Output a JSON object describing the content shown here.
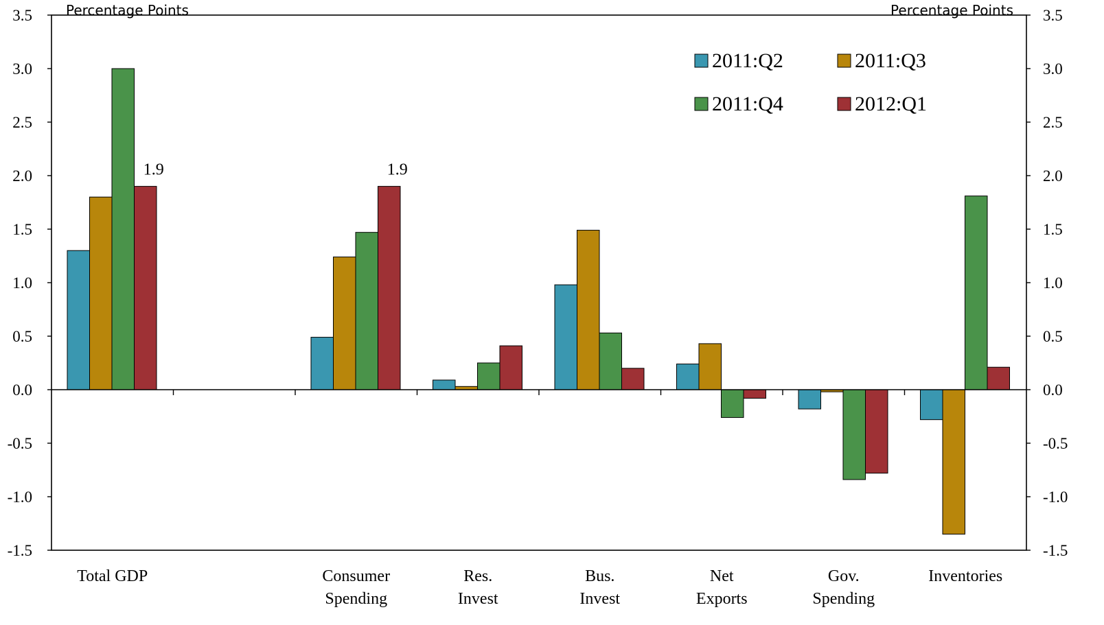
{
  "chart_data": {
    "type": "bar",
    "title": "",
    "y_unit_left": "Percentage Points",
    "y_unit_right": "Percentage Points",
    "ylim": [
      -1.5,
      3.5
    ],
    "yticks": [
      "-1.5",
      "-1.0",
      "-0.5",
      "0.0",
      "0.5",
      "1.0",
      "1.5",
      "2.0",
      "2.5",
      "3.0",
      "3.5"
    ],
    "ytick_values": [
      -1.5,
      -1.0,
      -0.5,
      0.0,
      0.5,
      1.0,
      1.5,
      2.0,
      2.5,
      3.0,
      3.5
    ],
    "grid": false,
    "legend_position": "top-right",
    "categories": [
      [
        "Total GDP"
      ],
      [
        ""
      ],
      [
        "Consumer",
        "Spending"
      ],
      [
        "Res.",
        "Invest"
      ],
      [
        "Bus.",
        "Invest"
      ],
      [
        "Net",
        "Exports"
      ],
      [
        "Gov.",
        "Spending"
      ],
      [
        "Inventories"
      ]
    ],
    "series": [
      {
        "name": "2011:Q2",
        "color": "#3A97B0",
        "values": [
          1.3,
          null,
          0.49,
          0.09,
          0.98,
          0.24,
          -0.18,
          -0.28
        ]
      },
      {
        "name": "2011:Q3",
        "color": "#B8860B",
        "values": [
          1.8,
          null,
          1.24,
          0.03,
          1.49,
          0.43,
          -0.02,
          -1.35
        ]
      },
      {
        "name": "2011:Q4",
        "color": "#4A934A",
        "values": [
          3.0,
          null,
          1.47,
          0.25,
          0.53,
          -0.26,
          -0.84,
          1.81
        ]
      },
      {
        "name": "2012:Q1",
        "color": "#9E3135",
        "values": [
          1.9,
          null,
          1.9,
          0.41,
          0.2,
          -0.08,
          -0.78,
          0.21
        ]
      }
    ],
    "annotations": [
      {
        "category_index": 0,
        "series_index": 3,
        "text": "1.9"
      },
      {
        "category_index": 2,
        "series_index": 3,
        "text": "1.9"
      }
    ]
  }
}
